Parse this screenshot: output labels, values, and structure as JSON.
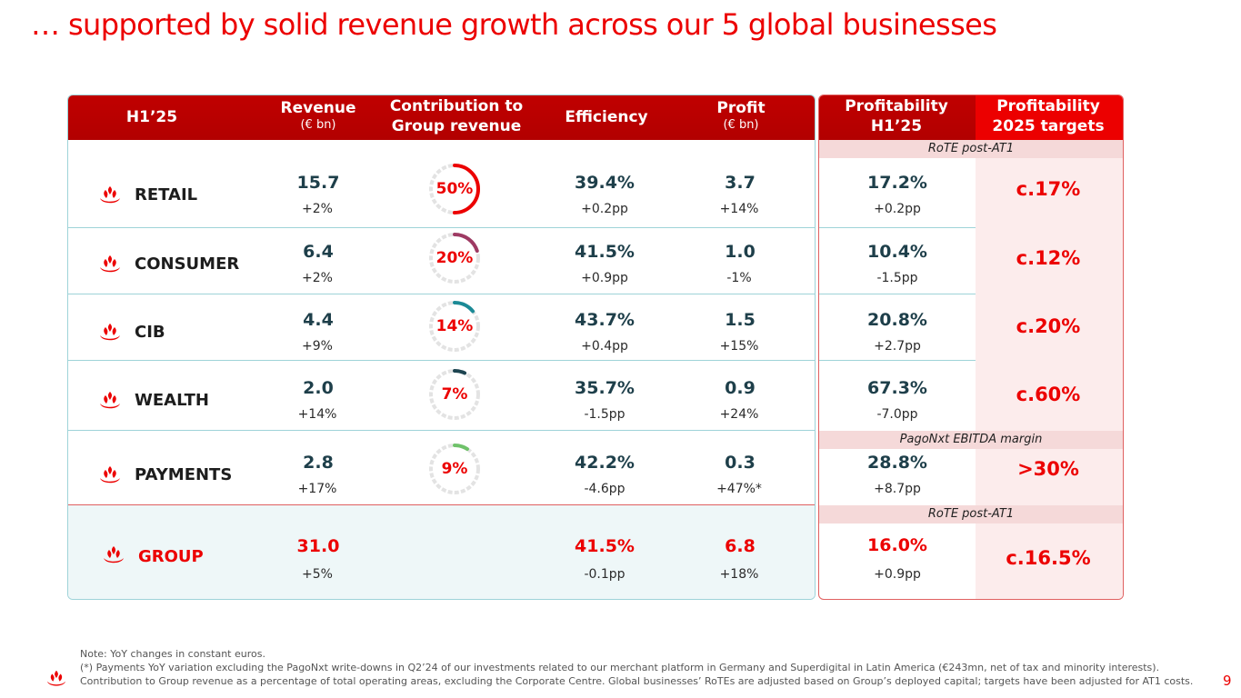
{
  "title": "… supported by solid revenue growth across our 5 global businesses",
  "headers": {
    "period": "H1’25",
    "revenue": "Revenue",
    "revenue_unit": "(€ bn)",
    "contribution_line1": "Contribution to",
    "contribution_line2": "Group revenue",
    "efficiency": "Efficiency",
    "profit": "Profit",
    "profit_unit": "(€ bn)",
    "profitability_line1": "Profitability",
    "profitability_line2": "H1’25",
    "targets_line1": "Profitability",
    "targets_line2": "2025 targets"
  },
  "subbands": {
    "rote_top": "RoTE post-AT1",
    "pagonxt": "PagoNxt EBITDA margin",
    "rote_group": "RoTE post-AT1"
  },
  "accent_colors": {
    "brand_red": "#ec0000",
    "retail_donut": "#ec0000",
    "consumer_donut": "#9e3a63",
    "cib_donut": "#1c8a96",
    "wealth_donut": "#1d4450",
    "payments_donut": "#6fc26a"
  },
  "rows": [
    {
      "name": "RETAIL",
      "revenue": "15.7",
      "revenue_chg": "+2%",
      "contribution": "50%",
      "contribution_fraction": 0.5,
      "efficiency": "39.4%",
      "efficiency_chg": "+0.2pp",
      "profit": "3.7",
      "profit_chg": "+14%",
      "rote": "17.2%",
      "rote_chg": "+0.2pp",
      "target": "c.17%"
    },
    {
      "name": "CONSUMER",
      "revenue": "6.4",
      "revenue_chg": "+2%",
      "contribution": "20%",
      "contribution_fraction": 0.2,
      "efficiency": "41.5%",
      "efficiency_chg": "+0.9pp",
      "profit": "1.0",
      "profit_chg": "-1%",
      "rote": "10.4%",
      "rote_chg": "-1.5pp",
      "target": "c.12%"
    },
    {
      "name": "CIB",
      "revenue": "4.4",
      "revenue_chg": "+9%",
      "contribution": "14%",
      "contribution_fraction": 0.14,
      "efficiency": "43.7%",
      "efficiency_chg": "+0.4pp",
      "profit": "1.5",
      "profit_chg": "+15%",
      "rote": "20.8%",
      "rote_chg": "+2.7pp",
      "target": "c.20%"
    },
    {
      "name": "WEALTH",
      "revenue": "2.0",
      "revenue_chg": "+14%",
      "contribution": "7%",
      "contribution_fraction": 0.07,
      "efficiency": "35.7%",
      "efficiency_chg": "-1.5pp",
      "profit": "0.9",
      "profit_chg": "+24%",
      "rote": "67.3%",
      "rote_chg": "-7.0pp",
      "target": "c.60%"
    },
    {
      "name": "PAYMENTS",
      "revenue": "2.8",
      "revenue_chg": "+17%",
      "contribution": "9%",
      "contribution_fraction": 0.09,
      "efficiency": "42.2%",
      "efficiency_chg": "-4.6pp",
      "profit": "0.3",
      "profit_chg": "+47%*",
      "rote": "28.8%",
      "rote_chg": "+8.7pp",
      "target": ">30%"
    }
  ],
  "group": {
    "name": "GROUP",
    "revenue": "31.0",
    "revenue_chg": "+5%",
    "efficiency": "41.5%",
    "efficiency_chg": "-0.1pp",
    "profit": "6.8",
    "profit_chg": "+18%",
    "rote": "16.0%",
    "rote_chg": "+0.9pp",
    "target": "c.16.5%"
  },
  "footer": {
    "line1": "Note: YoY changes in constant euros.",
    "line2": "(*) Payments YoY variation excluding the PagoNxt write-downs in Q2’24 of our investments related to our merchant platform in Germany and Superdigital in Latin America (€243mn, net of tax and minority interests).",
    "line3": "Contribution to Group revenue as a percentage of total operating areas, excluding the Corporate Centre. Global businesses’ RoTEs are adjusted based on Group’s deployed capital; targets have been adjusted for AT1 costs."
  },
  "page_number": "9"
}
